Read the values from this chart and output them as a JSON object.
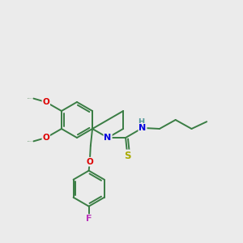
{
  "background_color": "#ebebeb",
  "bond_color": "#3a7d44",
  "atom_colors": {
    "N": "#0000dd",
    "O": "#dd0000",
    "F": "#bb33bb",
    "S": "#aaaa00",
    "H": "#559999",
    "C": "#3a7d44"
  },
  "figsize": [
    3.0,
    3.0
  ],
  "dpi": 100
}
